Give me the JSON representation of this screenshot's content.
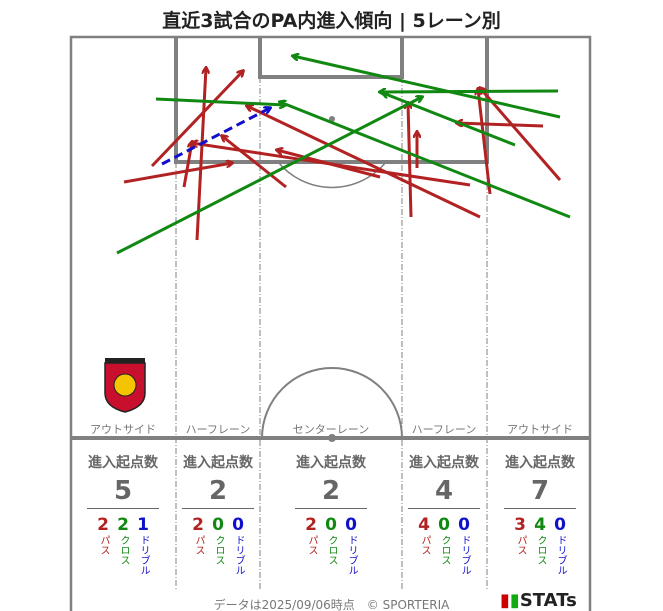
{
  "title": "直近3試合のPA内進入傾向 | 5レーン別",
  "colors": {
    "pass": "#b22222",
    "cross": "#118811",
    "dribble": "#1010cc",
    "line": "#808080"
  },
  "lanes": [
    {
      "label": "アウトサイド",
      "header": "進入起点数",
      "total": "5",
      "pass": "2",
      "cross": "2",
      "dribble": "1"
    },
    {
      "label": "ハーフレーン",
      "header": "進入起点数",
      "total": "2",
      "pass": "2",
      "cross": "0",
      "dribble": "0"
    },
    {
      "label": "センターレーン",
      "header": "進入起点数",
      "total": "2",
      "pass": "2",
      "cross": "0",
      "dribble": "0"
    },
    {
      "label": "ハーフレーン",
      "header": "進入起点数",
      "total": "4",
      "pass": "4",
      "cross": "0",
      "dribble": "0"
    },
    {
      "label": "アウトサイド",
      "header": "進入起点数",
      "total": "7",
      "pass": "3",
      "cross": "4",
      "dribble": "0"
    }
  ],
  "type_labels": {
    "pass": "パス",
    "cross": "クロス",
    "dribble": "ドリブル"
  },
  "footer": "データは2025/09/06時点　© SPORTERIA",
  "brand": "STATs",
  "logo_icon": "club-crest-icon"
}
